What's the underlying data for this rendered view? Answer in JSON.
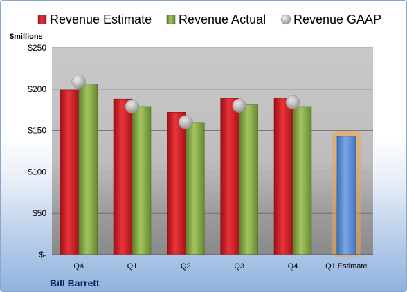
{
  "chart_data": {
    "type": "bar",
    "title": "",
    "company": "Bill Barrett",
    "unit_label": "$millions",
    "categories": [
      "Q4",
      "Q1",
      "Q2",
      "Q3",
      "Q4",
      "Q1 Estimate"
    ],
    "series": [
      {
        "name": "Revenue Estimate",
        "color": "#d8232a",
        "values": [
          199,
          188,
          172,
          189,
          189,
          null
        ]
      },
      {
        "name": "Revenue Actual",
        "color": "#8db04a",
        "values": [
          206,
          179,
          159,
          181,
          179,
          null
        ]
      },
      {
        "name": "Revenue GAAP",
        "color": "#b4b4b4",
        "marker": "circle",
        "values": [
          209,
          179,
          160,
          180,
          184,
          null
        ]
      },
      {
        "name": "Q1 Estimate",
        "color": "#5a8fd4",
        "highlight": "#f5a04a",
        "values": [
          null,
          null,
          null,
          null,
          null,
          143
        ]
      }
    ],
    "yticks": [
      0,
      50,
      100,
      150,
      200,
      250
    ],
    "ytick_labels": [
      "$-",
      "$50",
      "$100",
      "$150",
      "$200",
      "$250"
    ],
    "ylim": [
      0,
      250
    ],
    "grid": true,
    "legend": "top"
  }
}
